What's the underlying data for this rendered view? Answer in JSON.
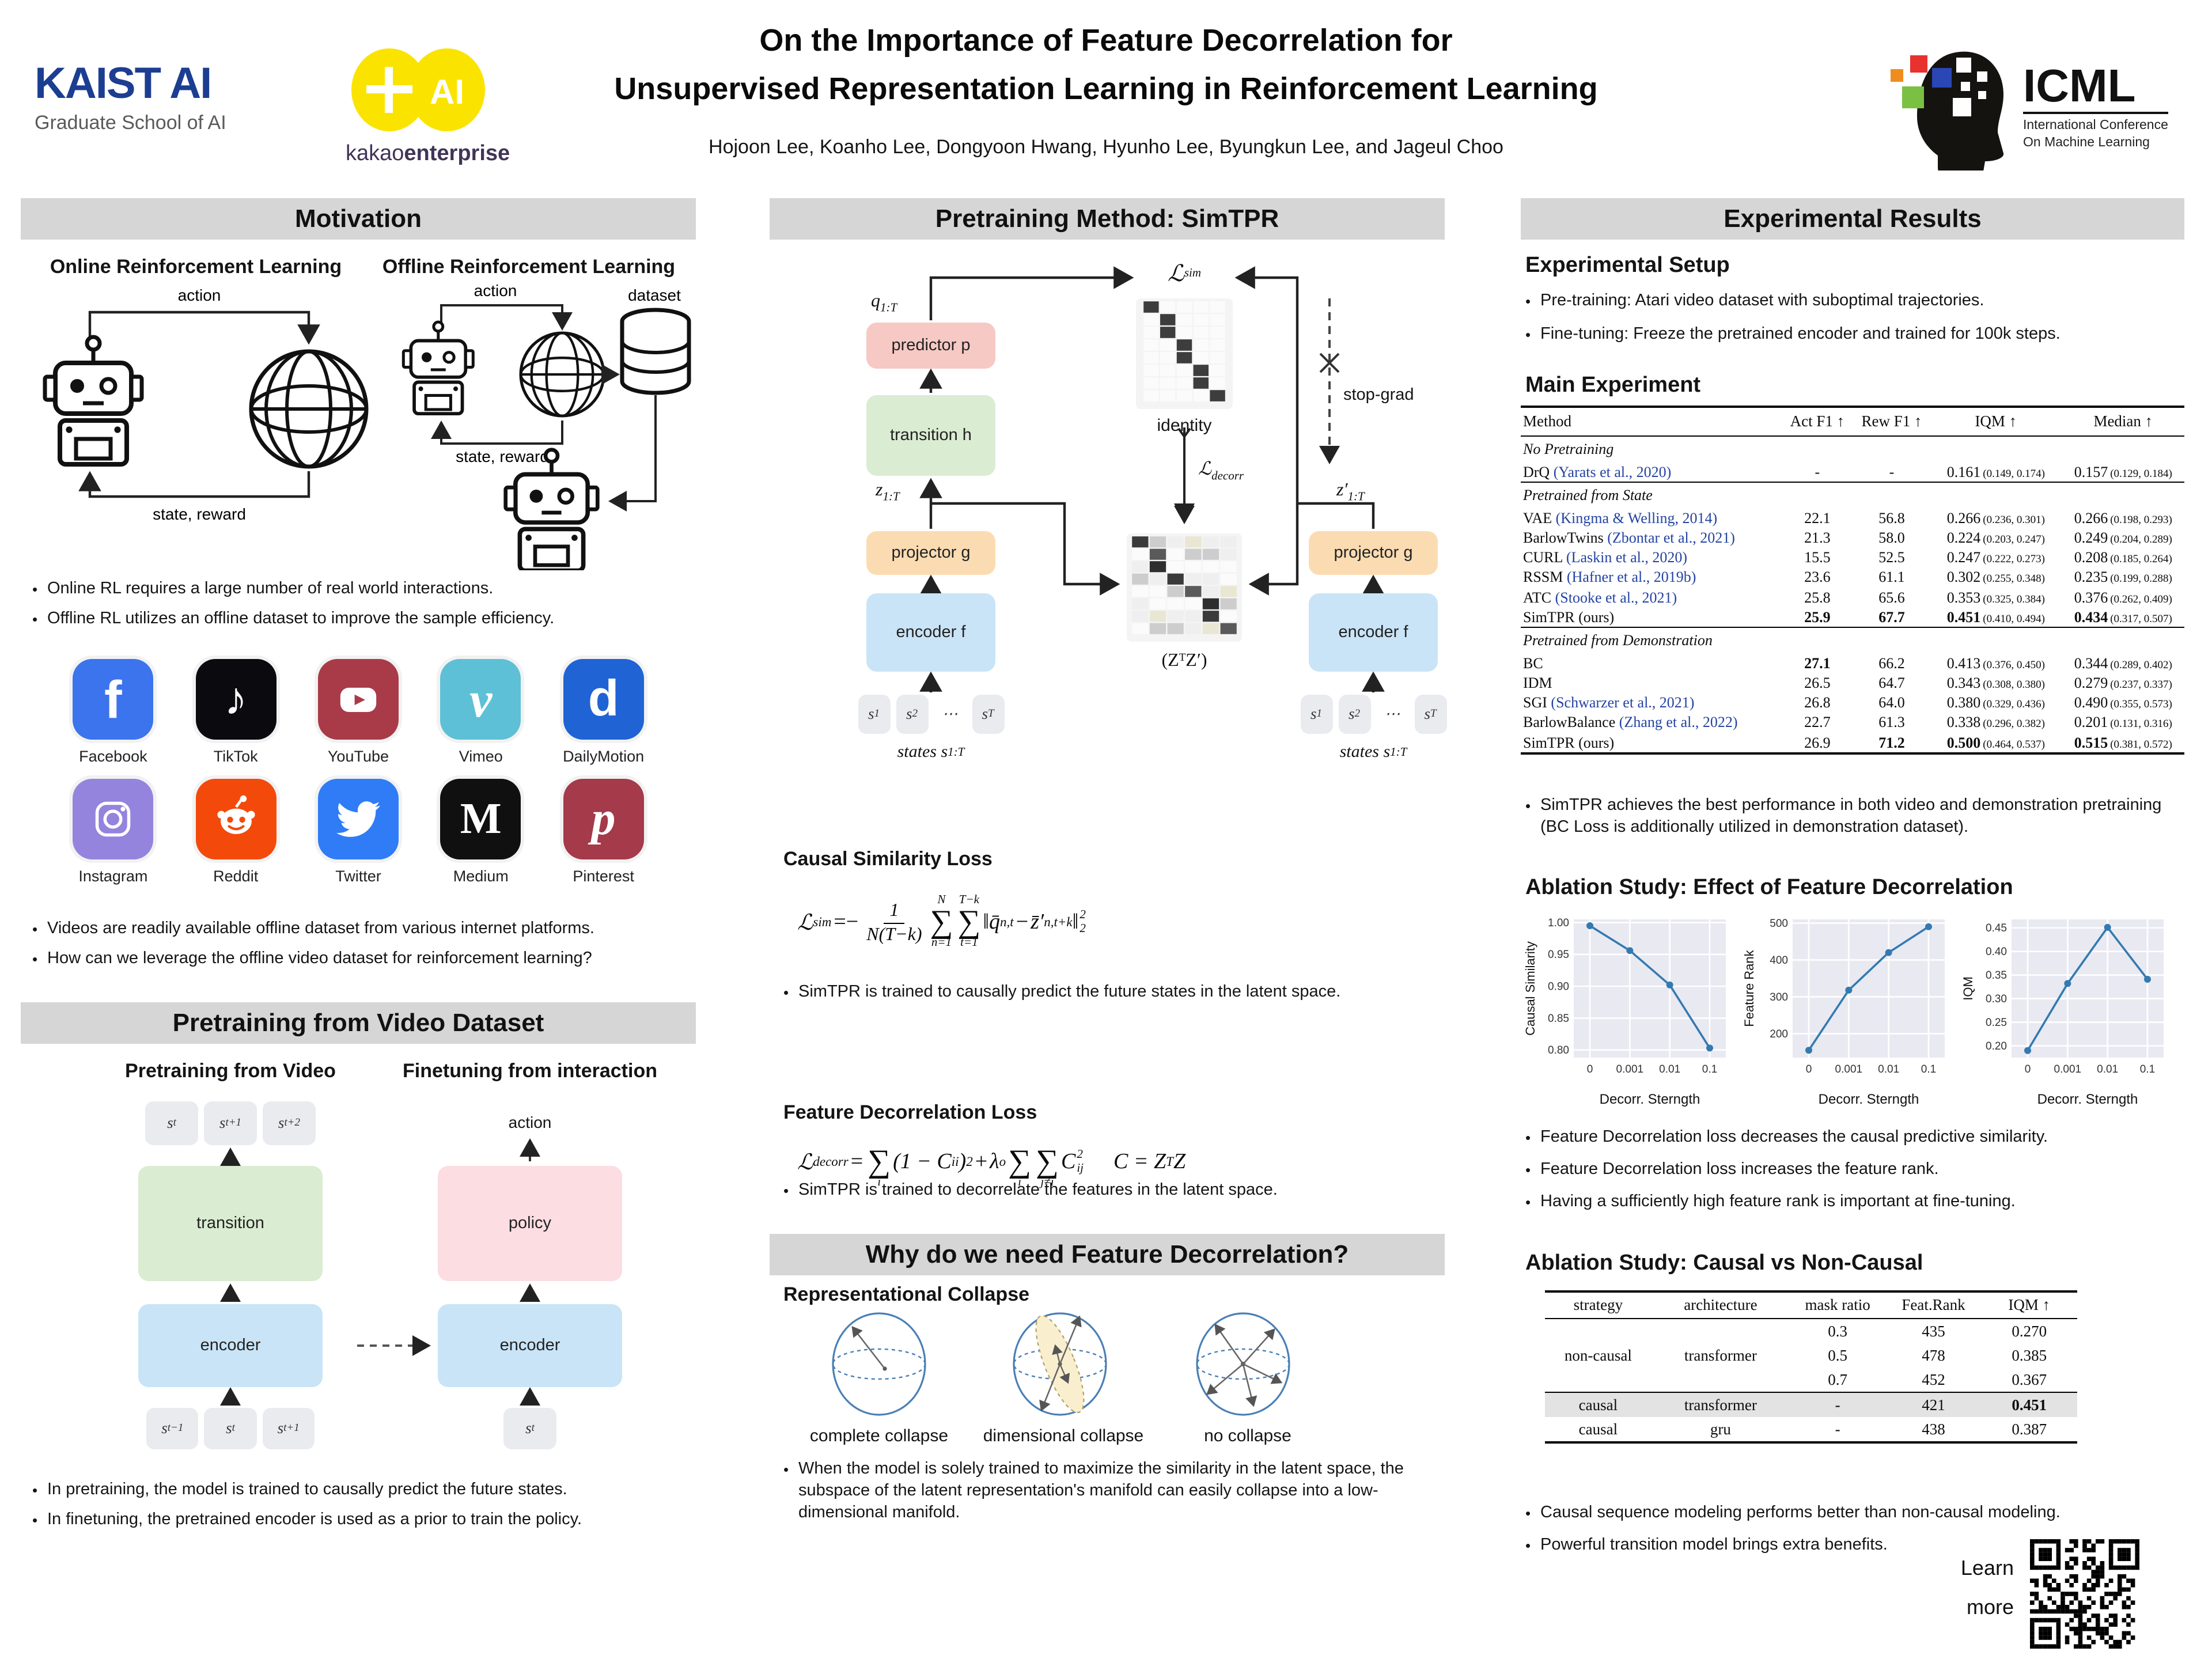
{
  "header": {
    "kaist": {
      "line1": "KAIST AI",
      "line2": "Graduate School of AI"
    },
    "kakao": {
      "plus": "+",
      "ai": "AI",
      "word_normal": "kakao",
      "word_bold": "enterprise"
    },
    "title_line1": "On the Importance of Feature Decorrelation for",
    "title_line2": "Unsupervised Representation Learning in Reinforcement Learning",
    "authors": "Hojoon Lee, Koanho Lee, Dongyoon Hwang, Hyunho Lee, Byungkun Lee, and Jageul Choo",
    "icml": {
      "name": "ICML",
      "sub1": "International Conference",
      "sub2": "On Machine Learning"
    }
  },
  "motivation": {
    "header": "Motivation",
    "online_title": "Online Reinforcement Learning",
    "offline_title": "Offline Reinforcement Learning",
    "labels": {
      "action1": "action",
      "state1": "state, reward",
      "action2": "action",
      "state2": "state, reward",
      "dataset": "dataset"
    },
    "bullets": [
      "Online RL requires a large number of real world interactions.",
      "Offline RL utilizes an offline dataset to improve the sample efficiency."
    ],
    "platforms": [
      {
        "label": "Facebook",
        "color": "#3b74ec",
        "icon": "facebook"
      },
      {
        "label": "TikTok",
        "color": "#0b0b0f",
        "icon": "tiktok"
      },
      {
        "label": "YouTube",
        "color": "#a93b49",
        "icon": "youtube"
      },
      {
        "label": "Vimeo",
        "color": "#5ec0d6",
        "icon": "vimeo"
      },
      {
        "label": "DailyMotion",
        "color": "#2063d4",
        "icon": "dailymotion"
      },
      {
        "label": "Instagram",
        "color": "#9484de",
        "icon": "instagram"
      },
      {
        "label": "Reddit",
        "color": "#f34a0c",
        "icon": "reddit"
      },
      {
        "label": "Twitter",
        "color": "#2f7cf6",
        "icon": "twitter"
      },
      {
        "label": "Medium",
        "color": "#101010",
        "icon": "medium"
      },
      {
        "label": "Pinterest",
        "color": "#a43a4a",
        "icon": "pinterest"
      }
    ],
    "bullets2": [
      "Videos are readily available offline dataset from various internet platforms.",
      "How can we leverage the offline video dataset for reinforcement learning?"
    ]
  },
  "video": {
    "header": "Pretraining from Video Dataset",
    "left_title": "Pretraining from Video",
    "right_title": "Finetuning from interaction",
    "action": "action",
    "boxes": {
      "transition": "transition",
      "policy": "policy",
      "encoder_left": "encoder",
      "encoder_right": "encoder"
    },
    "chips_top": [
      {
        "b": "s",
        "s": "t"
      },
      {
        "b": "s",
        "s": "t+1"
      },
      {
        "b": "s",
        "s": "t+2"
      }
    ],
    "chips_bottom": [
      {
        "b": "s",
        "s": "t−1"
      },
      {
        "b": "s",
        "s": "t"
      },
      {
        "b": "s",
        "s": "t+1"
      }
    ],
    "chips_right": [
      {
        "b": "s",
        "s": "t"
      }
    ],
    "bullets": [
      "In pretraining, the model is trained to causally predict the future states.",
      "In finetuning, the pretrained encoder is used as a prior to train the policy."
    ]
  },
  "method": {
    "header": "Pretraining Method: SimTPR",
    "diagram": {
      "l_sim": {
        "b": "ℒ",
        "s": "sim"
      },
      "l_decorr": {
        "b": "ℒ",
        "s": "decorr"
      },
      "q": {
        "b": "q",
        "s": "1:T"
      },
      "z": {
        "b": "z",
        "s": "1:T"
      },
      "z_prime": {
        "b": "z′",
        "s": "1:T"
      },
      "predictor": "predictor p",
      "transition": "transition h",
      "projector_left": "projector g",
      "projector_right": "projector g",
      "encoder_left": "encoder f",
      "encoder_right": "encoder f",
      "identity": "identity",
      "ztz": "(ZᵀZ′)",
      "stop_grad": "stop-grad",
      "states_left": {
        "b": "states s",
        "s": "1:T"
      },
      "states_right": {
        "b": "states s",
        "s": "1:T"
      },
      "chips": [
        {
          "b": "s",
          "s": "1"
        },
        {
          "b": "s",
          "s": "2"
        },
        {
          "b": "⋯",
          "s": ""
        },
        {
          "b": "s",
          "s": "T"
        }
      ]
    },
    "sim_loss": {
      "title": "Causal Similarity Loss",
      "tokens": [
        {
          "t": "var",
          "v": "ℒ"
        },
        {
          "t": "sub",
          "v": "sim"
        },
        {
          "t": "op",
          "v": "=−"
        },
        {
          "t": "frac",
          "num": "1",
          "den": "N(T−k)"
        },
        {
          "t": "sum",
          "top": "N",
          "bot": "n=1"
        },
        {
          "t": "sum",
          "top": "T−k",
          "bot": "t=1"
        },
        {
          "t": "var",
          "v": "‖q̄"
        },
        {
          "t": "sub",
          "v": "n,t"
        },
        {
          "t": "op",
          "v": " − "
        },
        {
          "t": "var",
          "v": "z̄′"
        },
        {
          "t": "sub",
          "v": "n,t+k"
        },
        {
          "t": "var",
          "v": "‖"
        },
        {
          "t": "stack",
          "sup": "2",
          "sub": "2"
        }
      ],
      "bullet": "SimTPR is trained to causally predict the future states in the latent space."
    },
    "decorr_loss": {
      "title": "Feature Decorrelation Loss",
      "tokens": [
        {
          "t": "var",
          "v": "ℒ"
        },
        {
          "t": "sub",
          "v": "decorr"
        },
        {
          "t": "op",
          "v": " = "
        },
        {
          "t": "sum",
          "top": "",
          "bot": "i"
        },
        {
          "t": "var",
          "v": "(1 − C"
        },
        {
          "t": "sub",
          "v": "ii"
        },
        {
          "t": "var",
          "v": ")"
        },
        {
          "t": "sup",
          "v": "2"
        },
        {
          "t": "op",
          "v": " + "
        },
        {
          "t": "var",
          "v": "λ"
        },
        {
          "t": "sub",
          "v": "o"
        },
        {
          "t": "sum",
          "top": "",
          "bot": "i"
        },
        {
          "t": "sum",
          "top": "",
          "bot": "j≠i"
        },
        {
          "t": "var",
          "v": "C"
        },
        {
          "t": "stack",
          "sup": "2",
          "sub": "ij"
        },
        {
          "t": "gap",
          "v": ""
        },
        {
          "t": "var",
          "v": "C = Z"
        },
        {
          "t": "sup",
          "v": "T"
        },
        {
          "t": "var",
          "v": "Z"
        }
      ],
      "bullet": "SimTPR is trained to decorrelate the features in the latent space."
    },
    "collapse": {
      "header": "Why do we need Feature Decorrelation?",
      "subtitle": "Representational Collapse",
      "labels": [
        "complete collapse",
        "dimensional collapse",
        "no collapse"
      ],
      "bullet": "When the model is solely trained to maximize the similarity in the latent space, the subspace of the latent representation's manifold can easily collapse into a low-dimensional manifold."
    }
  },
  "results": {
    "header": "Experimental Results",
    "setup_title": "Experimental Setup",
    "setup_bullets": [
      "Pre-training: Atari video dataset with suboptimal trajectories.",
      "Fine-tuning: Freeze the pretrained encoder and trained for 100k steps."
    ],
    "main_title": "Main Experiment",
    "main_table": {
      "columns": [
        "Method",
        "Act F1 ↑",
        "Rew F1 ↑",
        "IQM ↑",
        "Median ↑"
      ],
      "groups": [
        {
          "label": "No Pretraining",
          "rows": [
            {
              "method": "DrQ ",
              "cite": "(Yarats et al., 2020)",
              "act": "-",
              "rew": "-",
              "iqm": "0.161",
              "iqm_ci": "(0.149, 0.174)",
              "med": "0.157",
              "med_ci": "(0.129, 0.184)"
            }
          ]
        },
        {
          "label": "Pretrained from State",
          "rows": [
            {
              "method": "VAE ",
              "cite": "(Kingma & Welling, 2014)",
              "act": "22.1",
              "rew": "56.8",
              "iqm": "0.266",
              "iqm_ci": "(0.236, 0.301)",
              "med": "0.266",
              "med_ci": "(0.198, 0.293)"
            },
            {
              "method": "BarlowTwins ",
              "cite": "(Zbontar et al., 2021)",
              "act": "21.3",
              "rew": "58.0",
              "iqm": "0.224",
              "iqm_ci": "(0.203, 0.247)",
              "med": "0.249",
              "med_ci": "(0.204, 0.289)"
            },
            {
              "method": "CURL ",
              "cite": "(Laskin et al., 2020)",
              "act": "15.5",
              "rew": "52.5",
              "iqm": "0.247",
              "iqm_ci": "(0.222, 0.273)",
              "med": "0.208",
              "med_ci": "(0.185, 0.264)"
            },
            {
              "method": "RSSM ",
              "cite": "(Hafner et al., 2019b)",
              "act": "23.6",
              "rew": "61.1",
              "iqm": "0.302",
              "iqm_ci": "(0.255, 0.348)",
              "med": "0.235",
              "med_ci": "(0.199, 0.288)"
            },
            {
              "method": "ATC ",
              "cite": "(Stooke et al., 2021)",
              "act": "25.8",
              "rew": "65.6",
              "iqm": "0.353",
              "iqm_ci": "(0.325, 0.384)",
              "med": "0.376",
              "med_ci": "(0.262, 0.409)"
            },
            {
              "method": "SimTPR (ours)",
              "cite": "",
              "act": "25.9",
              "rew": "67.7",
              "iqm": "0.451",
              "iqm_ci": "(0.410, 0.494)",
              "med": "0.434",
              "med_ci": "(0.317, 0.507)",
              "b_act": true,
              "b_rew": true,
              "b_iqm": true,
              "b_med": true
            }
          ]
        },
        {
          "label": "Pretrained from Demonstration",
          "rows": [
            {
              "method": "BC",
              "cite": "",
              "act": "27.1",
              "rew": "66.2",
              "iqm": "0.413",
              "iqm_ci": "(0.376, 0.450)",
              "med": "0.344",
              "med_ci": "(0.289, 0.402)",
              "b_act": true
            },
            {
              "method": "IDM",
              "cite": "",
              "act": "26.5",
              "rew": "64.7",
              "iqm": "0.343",
              "iqm_ci": "(0.308, 0.380)",
              "med": "0.279",
              "med_ci": "(0.237, 0.337)"
            },
            {
              "method": "SGI ",
              "cite": "(Schwarzer et al., 2021)",
              "act": "26.8",
              "rew": "64.0",
              "iqm": "0.380",
              "iqm_ci": "(0.329, 0.436)",
              "med": "0.490",
              "med_ci": "(0.355, 0.573)"
            },
            {
              "method": "BarlowBalance ",
              "cite": "(Zhang et al., 2022)",
              "act": "22.7",
              "rew": "61.3",
              "iqm": "0.338",
              "iqm_ci": "(0.296, 0.382)",
              "med": "0.201",
              "med_ci": "(0.131, 0.316)"
            },
            {
              "method": "SimTPR (ours)",
              "cite": "",
              "act": "26.9",
              "rew": "71.2",
              "iqm": "0.500",
              "iqm_ci": "(0.464, 0.537)",
              "med": "0.515",
              "med_ci": "(0.381, 0.572)",
              "b_rew": true,
              "b_iqm": true,
              "b_med": true
            }
          ]
        }
      ]
    },
    "best_bullets": [
      "SimTPR achieves the best performance in both video and demonstration pretraining (BC Loss is additionally utilized in demonstration dataset)."
    ],
    "ablation1_title": "Ablation Study: Effect of Feature Decorrelation",
    "ablation1_bullets": [
      "Feature Decorrelation loss decreases the causal predictive similarity.",
      "Feature Decorrelation loss increases the feature rank.",
      "Having a sufficiently high feature rank is important at fine-tuning."
    ],
    "ablation2_title": "Ablation Study: Causal vs Non-Causal",
    "causal_table": {
      "columns": [
        "strategy",
        "architecture",
        "mask ratio",
        "Feat.Rank",
        "IQM ↑"
      ],
      "rows": [
        {
          "strategy": "",
          "arch": "",
          "mask": "0.3",
          "rank": "435",
          "iqm": "0.270"
        },
        {
          "strategy": "non-causal",
          "arch": "transformer",
          "mask": "0.5",
          "rank": "478",
          "iqm": "0.385"
        },
        {
          "strategy": "",
          "arch": "",
          "mask": "0.7",
          "rank": "452",
          "iqm": "0.367"
        },
        {
          "strategy": "causal",
          "arch": "transformer",
          "mask": "-",
          "rank": "421",
          "iqm": "0.451",
          "b_iqm": true,
          "highlight": true,
          "rule_before": true
        },
        {
          "strategy": "causal",
          "arch": "gru",
          "mask": "-",
          "rank": "438",
          "iqm": "0.387"
        }
      ]
    },
    "ablation2_bullets": [
      "Causal sequence modeling performs better than non-causal modeling.",
      "Powerful transition model brings extra benefits."
    ],
    "learn_more_line1": "Learn",
    "learn_more_line2": "more"
  },
  "chart_data": [
    {
      "type": "line",
      "title": "",
      "x_tick_labels": [
        "0",
        "0.001",
        "0.01",
        "0.1"
      ],
      "values": [
        0.995,
        0.956,
        0.902,
        0.803
      ],
      "xlabel": "Decorr. Sterngth",
      "ylabel": "Causal Similarity",
      "ylim": [
        0.788,
        1.005
      ],
      "yticks": [
        0.8,
        0.85,
        0.9,
        0.95,
        1.0
      ],
      "ydec": 2,
      "grid": true,
      "legend": "none"
    },
    {
      "type": "line",
      "title": "",
      "x_tick_labels": [
        "0",
        "0.001",
        "0.01",
        "0.1"
      ],
      "values": [
        155,
        318,
        420,
        490
      ],
      "xlabel": "Decorr. Sterngth",
      "ylabel": "Feature Rank",
      "ylim": [
        135,
        510
      ],
      "yticks": [
        200,
        300,
        400,
        500
      ],
      "ydec": 0,
      "grid": true,
      "legend": "none"
    },
    {
      "type": "line",
      "title": "",
      "x_tick_labels": [
        "0",
        "0.001",
        "0.01",
        "0.1"
      ],
      "values": [
        0.19,
        0.332,
        0.451,
        0.341
      ],
      "xlabel": "Decorr. Sterngth",
      "ylabel": "IQM",
      "ylim": [
        0.175,
        0.468
      ],
      "yticks": [
        0.2,
        0.25,
        0.3,
        0.35,
        0.4,
        0.45
      ],
      "ydec": 2,
      "grid": true,
      "legend": "none"
    }
  ]
}
